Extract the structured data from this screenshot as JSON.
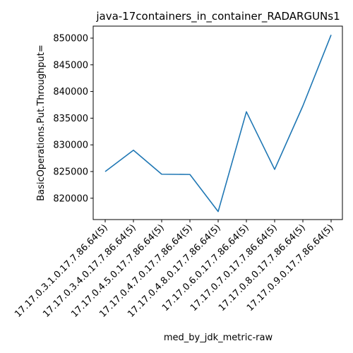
{
  "chart_data": {
    "type": "line",
    "title": "java-17containers_in_container_RADARGUNs1",
    "xlabel": "med_by_jdk_metric-raw",
    "ylabel": "BasicOperations.Put.Throughput=",
    "categories": [
      "17.17.0.3.1.0.17.7.86.64(5)",
      "17.17.0.3.4.0.17.7.86.64(5)",
      "17.17.0.4.5.0.17.7.86.64(5)",
      "17.17.0.4.7.0.17.7.86.64(5)",
      "17.17.0.4.8.0.17.7.86.64(5)",
      "17.17.0.6.0.17.7.86.64(5)",
      "17.17.0.7.0.17.7.86.64(5)",
      "17.17.0.8.0.17.7.86.64(5)",
      "17.17.0.9.0.17.7.86.64(5)"
    ],
    "series": [
      {
        "values": [
          825000,
          829000,
          824500,
          824450,
          817500,
          836200,
          825400,
          837300,
          850600
        ]
      }
    ],
    "yticks": [
      820000,
      825000,
      830000,
      835000,
      840000,
      845000,
      850000
    ],
    "ytick_labels": [
      "820000",
      "825000",
      "830000",
      "835000",
      "840000",
      "845000",
      "850000"
    ],
    "ylim": [
      816000,
      852250
    ],
    "grid": false,
    "line_color": "#1f77b4"
  }
}
